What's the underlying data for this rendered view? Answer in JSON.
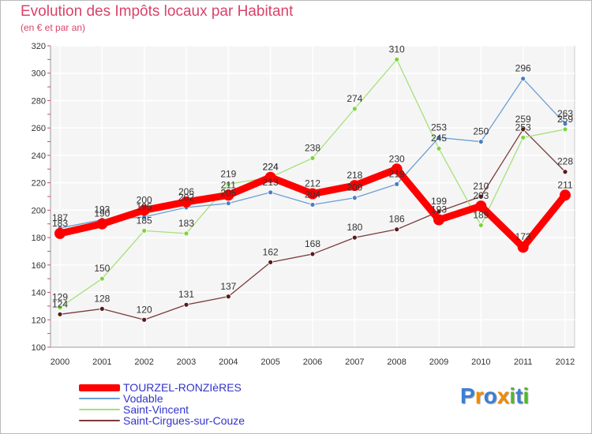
{
  "chart_data": {
    "type": "line",
    "title": "Evolution des Impôts locaux par Habitant",
    "subtitle": "(en € et par an)",
    "x": [
      "2000",
      "2001",
      "2002",
      "2003",
      "2004",
      "2005",
      "2006",
      "2007",
      "2008",
      "2009",
      "2010",
      "2011",
      "2012"
    ],
    "ylim": [
      100,
      320
    ],
    "yticks": [
      100,
      120,
      140,
      160,
      180,
      200,
      220,
      240,
      260,
      280,
      300,
      320
    ],
    "grid": true,
    "legend_position": "bottom-left",
    "series": [
      {
        "name": "TOURZEL-RONZIèRES",
        "color": "#ff0000",
        "marker": "#ff0000",
        "values": [
          183,
          190,
          200,
          206,
          211,
          224,
          212,
          218,
          230,
          193,
          203,
          173,
          211
        ]
      },
      {
        "name": "Vodable",
        "color": "#6b9fd4",
        "marker": "#4a7fc1",
        "values": [
          187,
          193,
          195,
          202,
          205,
          213,
          204,
          209,
          219,
          253,
          250,
          296,
          263
        ]
      },
      {
        "name": "Saint-Vincent",
        "color": "#a6e07a",
        "marker": "#7ed43e",
        "values": [
          129,
          150,
          185,
          183,
          219,
          224,
          238,
          274,
          310,
          245,
          189,
          253,
          259
        ]
      },
      {
        "name": "Saint-Cirgues-sur-Couze",
        "color": "#7a3a3a",
        "marker": "#5a1a1a",
        "values": [
          124,
          128,
          120,
          131,
          137,
          162,
          168,
          180,
          186,
          199,
          210,
          259,
          228
        ]
      }
    ]
  },
  "logo": {
    "text": "Proxiti",
    "letters": [
      "P",
      "r",
      "o",
      "x",
      "i",
      "t",
      "i"
    ],
    "colors": [
      "#3a7fd6",
      "#f08c00",
      "#3a7fd6",
      "#f08c00",
      "#55b630",
      "#3a7fd6",
      "#55b630"
    ]
  }
}
